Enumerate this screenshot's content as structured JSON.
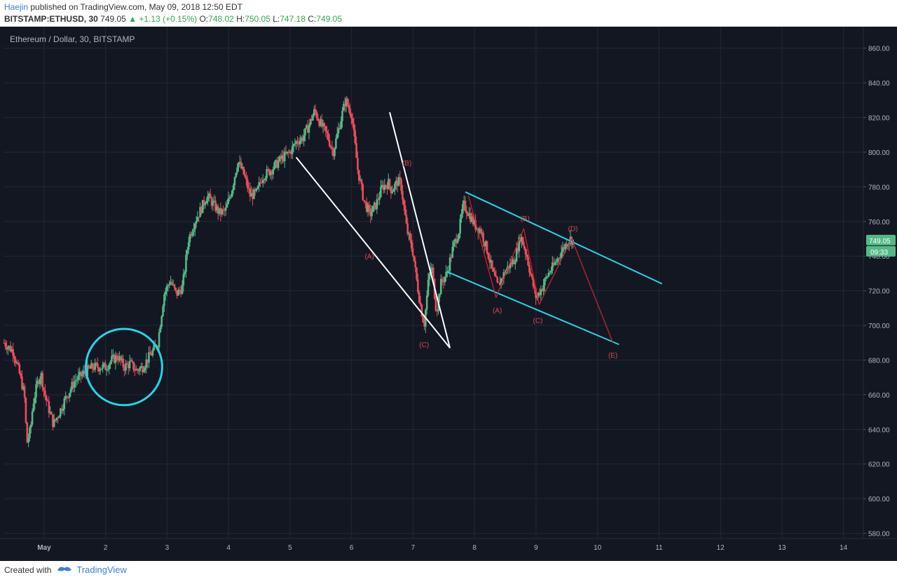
{
  "header": {
    "author": "Haejin",
    "published": " published on TradingView.com, May 09, 2018 12:50 EDT",
    "symbol": "BITSTAMP:ETHUSD, 30",
    "last": "749.05",
    "change": "▲ +1.13 (+0.15%)",
    "o_label": "O:",
    "o_value": "748.02",
    "h_label": "H:",
    "h_value": "750.05",
    "l_label": "L:",
    "l_value": "747.18",
    "c_label": "C:",
    "c_value": "749.05"
  },
  "footer": {
    "created_with": "Created with",
    "brand": "TradingView"
  },
  "colors": {
    "background": "#131722",
    "grid": "#232836",
    "up": "#53b987",
    "down": "#eb4d5c",
    "cyan": "#23d5e8",
    "white": "#ffffff",
    "wave": "#c0262d",
    "label": "#e0474c",
    "axis_text": "#b2b5be",
    "price_tag": "#53b987"
  },
  "chart_data": {
    "type": "candlestick",
    "title": "Ethereum / Dollar, 30, BITSTAMP",
    "x_ticks": [
      {
        "day": 1,
        "label": "May"
      },
      {
        "day": 2,
        "label": "2"
      },
      {
        "day": 3,
        "label": "3"
      },
      {
        "day": 4,
        "label": "4"
      },
      {
        "day": 5,
        "label": "5"
      },
      {
        "day": 6,
        "label": "6"
      },
      {
        "day": 7,
        "label": "7"
      },
      {
        "day": 8,
        "label": "8"
      },
      {
        "day": 9,
        "label": "9"
      },
      {
        "day": 10,
        "label": "10"
      },
      {
        "day": 11,
        "label": "11"
      },
      {
        "day": 12,
        "label": "12"
      },
      {
        "day": 13,
        "label": "13"
      },
      {
        "day": 14,
        "label": "14"
      }
    ],
    "y_ticks": [
      580,
      600,
      620,
      640,
      660,
      680,
      700,
      720,
      740,
      760,
      780,
      800,
      820,
      840,
      860
    ],
    "y_tick_format": "0.00",
    "xlim": [
      0.34,
      14.3
    ],
    "ylim": [
      577,
      870
    ],
    "last_price_tag": "749.05",
    "countdown_tag": "09:33",
    "price_path": [
      [
        0.35,
        690
      ],
      [
        0.5,
        685
      ],
      [
        0.6,
        672
      ],
      [
        0.68,
        660
      ],
      [
        0.72,
        632
      ],
      [
        0.78,
        640
      ],
      [
        0.82,
        655
      ],
      [
        0.9,
        668
      ],
      [
        0.95,
        672
      ],
      [
        1.0,
        662
      ],
      [
        1.05,
        655
      ],
      [
        1.15,
        643
      ],
      [
        1.25,
        650
      ],
      [
        1.35,
        658
      ],
      [
        1.5,
        668
      ],
      [
        1.6,
        671
      ],
      [
        1.7,
        674
      ],
      [
        1.8,
        676
      ],
      [
        2.0,
        676
      ],
      [
        2.1,
        680
      ],
      [
        2.2,
        682
      ],
      [
        2.3,
        676
      ],
      [
        2.4,
        678
      ],
      [
        2.5,
        674
      ],
      [
        2.6,
        676
      ],
      [
        2.75,
        684
      ],
      [
        2.85,
        690
      ],
      [
        2.95,
        718
      ],
      [
        3.05,
        726
      ],
      [
        3.15,
        718
      ],
      [
        3.25,
        722
      ],
      [
        3.35,
        750
      ],
      [
        3.45,
        760
      ],
      [
        3.55,
        767
      ],
      [
        3.65,
        775
      ],
      [
        3.75,
        770
      ],
      [
        3.85,
        765
      ],
      [
        3.95,
        766
      ],
      [
        4.05,
        778
      ],
      [
        4.15,
        795
      ],
      [
        4.25,
        787
      ],
      [
        4.35,
        775
      ],
      [
        4.45,
        776
      ],
      [
        4.55,
        786
      ],
      [
        4.7,
        790
      ],
      [
        4.85,
        796
      ],
      [
        5.0,
        800
      ],
      [
        5.1,
        806
      ],
      [
        5.2,
        808
      ],
      [
        5.3,
        815
      ],
      [
        5.4,
        824
      ],
      [
        5.5,
        816
      ],
      [
        5.6,
        810
      ],
      [
        5.7,
        800
      ],
      [
        5.8,
        815
      ],
      [
        5.9,
        830
      ],
      [
        6.0,
        822
      ],
      [
        6.1,
        790
      ],
      [
        6.2,
        772
      ],
      [
        6.3,
        764
      ],
      [
        6.4,
        770
      ],
      [
        6.5,
        780
      ],
      [
        6.6,
        782
      ],
      [
        6.65,
        778
      ],
      [
        6.75,
        783
      ],
      [
        6.8,
        782
      ],
      [
        6.9,
        755
      ],
      [
        7.0,
        742
      ],
      [
        7.05,
        728
      ],
      [
        7.1,
        716
      ],
      [
        7.18,
        700
      ],
      [
        7.25,
        726
      ],
      [
        7.3,
        735
      ],
      [
        7.38,
        708
      ],
      [
        7.45,
        724
      ],
      [
        7.55,
        730
      ],
      [
        7.65,
        745
      ],
      [
        7.75,
        755
      ],
      [
        7.82,
        770
      ],
      [
        7.9,
        765
      ],
      [
        8.0,
        758
      ],
      [
        8.1,
        755
      ],
      [
        8.2,
        744
      ],
      [
        8.3,
        730
      ],
      [
        8.38,
        722
      ],
      [
        8.45,
        728
      ],
      [
        8.55,
        734
      ],
      [
        8.65,
        738
      ],
      [
        8.75,
        752
      ],
      [
        8.85,
        740
      ],
      [
        8.92,
        728
      ],
      [
        9.0,
        716
      ],
      [
        9.1,
        722
      ],
      [
        9.2,
        730
      ],
      [
        9.3,
        735
      ],
      [
        9.4,
        742
      ],
      [
        9.5,
        748
      ],
      [
        9.55,
        750
      ],
      [
        9.6,
        749
      ]
    ],
    "annotations": {
      "circle": {
        "center": [
          2.3,
          676
        ],
        "radius_days": 0.62
      },
      "white_lines": [
        [
          [
            5.1,
            797
          ],
          [
            7.6,
            687
          ]
        ],
        [
          [
            6.62,
            823
          ],
          [
            7.6,
            687
          ]
        ]
      ],
      "cyan_lines": [
        [
          [
            7.85,
            777
          ],
          [
            11.05,
            724
          ]
        ],
        [
          [
            7.55,
            731
          ],
          [
            10.35,
            689
          ]
        ]
      ],
      "wave_lines": [
        [
          [
            7.9,
            775
          ],
          [
            8.35,
            716
          ]
        ],
        [
          [
            8.35,
            716
          ],
          [
            8.8,
            756
          ]
        ],
        [
          [
            8.8,
            756
          ],
          [
            9.05,
            712
          ]
        ],
        [
          [
            9.05,
            712
          ],
          [
            9.58,
            750
          ]
        ],
        [
          [
            9.58,
            750
          ],
          [
            10.25,
            690
          ]
        ]
      ],
      "wave_labels": [
        {
          "text": "(A)",
          "at": [
            6.29,
            740
          ]
        },
        {
          "text": "(B)",
          "at": [
            6.9,
            794
          ]
        },
        {
          "text": "(C)",
          "at": [
            7.18,
            689
          ]
        },
        {
          "text": "(A)",
          "at": [
            8.37,
            709
          ]
        },
        {
          "text": "(B)",
          "at": [
            8.82,
            762
          ]
        },
        {
          "text": "(C)",
          "at": [
            9.03,
            703
          ]
        },
        {
          "text": "(D)",
          "at": [
            9.6,
            756
          ]
        },
        {
          "text": "(E)",
          "at": [
            10.25,
            683
          ]
        }
      ]
    }
  }
}
